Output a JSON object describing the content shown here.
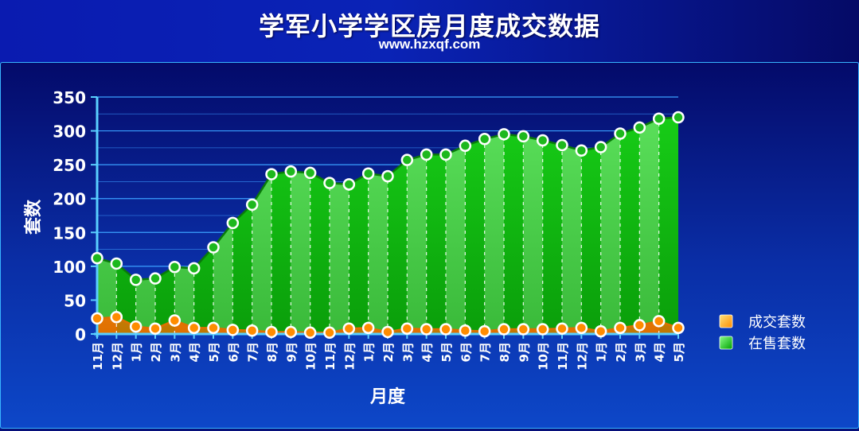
{
  "header": {
    "title": "学军小学学区房月度成交数据",
    "subtitle": "www.hzxqf.com"
  },
  "chart_data": {
    "type": "area",
    "title": "学军小学学区房月度成交数据",
    "subtitle": "www.hzxqf.com",
    "xlabel": "月度",
    "ylabel": "套数",
    "ylim": [
      0,
      350
    ],
    "yticks": [
      0,
      50,
      100,
      150,
      200,
      250,
      300,
      350
    ],
    "grid": true,
    "legend_position": "right",
    "categories": [
      "11月",
      "12月",
      "1月",
      "2月",
      "3月",
      "4月",
      "5月",
      "6月",
      "7月",
      "8月",
      "9月",
      "10月",
      "11月",
      "12月",
      "1月",
      "2月",
      "3月",
      "4月",
      "5月",
      "6月",
      "7月",
      "8月",
      "9月",
      "10月",
      "11月",
      "12月",
      "1月",
      "2月",
      "3月",
      "4月",
      "5月"
    ],
    "series": [
      {
        "name": "成交套数",
        "color": "#ff8c00",
        "values": [
          23,
          25,
          11,
          8,
          20,
          9,
          9,
          6,
          5,
          3,
          3,
          2,
          2,
          8,
          9,
          3,
          8,
          7,
          7,
          5,
          4,
          7,
          7,
          7,
          8,
          9,
          4,
          9,
          13,
          19,
          9
        ]
      },
      {
        "name": "在售套数",
        "color": "#00c800",
        "values": [
          112,
          104,
          80,
          82,
          99,
          97,
          128,
          164,
          191,
          236,
          240,
          238,
          223,
          221,
          237,
          233,
          257,
          265,
          265,
          278,
          288,
          295,
          292,
          286,
          279,
          271,
          276,
          296,
          305,
          318,
          320
        ]
      }
    ]
  }
}
